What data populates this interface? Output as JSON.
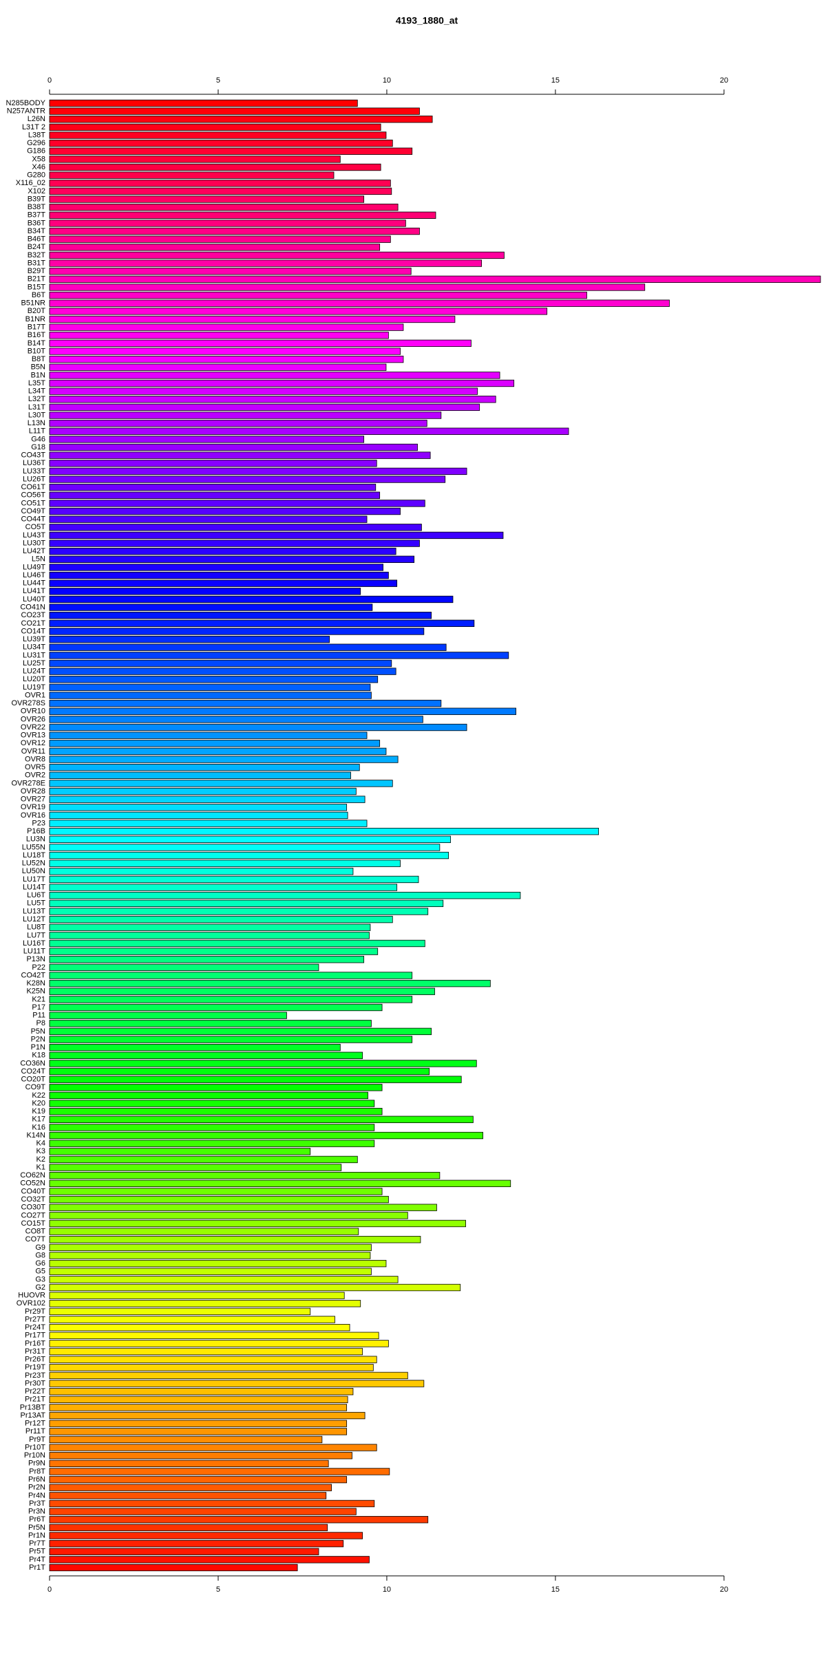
{
  "chart_data": {
    "type": "barh",
    "title": "4193_1880_at",
    "palette": "rainbow",
    "categories": [
      "N285BODY",
      "N257ANTR",
      "L26N",
      "L31T 2",
      "L38T",
      "G296",
      "G186",
      "X58",
      "X46",
      "G280",
      "X116_02",
      "X102",
      "B39T",
      "B38T",
      "B37T",
      "B36T",
      "B34T",
      "B46T",
      "B24T",
      "B32T",
      "B31T",
      "B29T",
      "B21T",
      "B15T",
      "B6T",
      "B51NR",
      "B20T",
      "B1NR",
      "B17T",
      "B16T",
      "B14T",
      "B10T",
      "B8T",
      "B5N",
      "B1N",
      "L35T",
      "L34T",
      "L32T",
      "L31T",
      "L30T",
      "L13N",
      "L11T",
      "G46",
      "G18",
      "CO43T",
      "LU36T",
      "LU33T",
      "LU26T",
      "CO61T",
      "CO56T",
      "CO51T",
      "CO49T",
      "CO44T",
      "CO5T",
      "LU43T",
      "LU30T",
      "LU42T",
      "L5N",
      "LU49T",
      "LU46T",
      "LU44T",
      "LU41T",
      "LU40T",
      "CO41N",
      "CO23T",
      "CO21T",
      "CO14T",
      "LU39T",
      "LU34T",
      "LU31T",
      "LU25T",
      "LU24T",
      "LU20T",
      "LU19T",
      "OVR1",
      "OVR278S",
      "OVR10",
      "OVR26",
      "OVR22",
      "OVR13",
      "OVR12",
      "OVR11",
      "OVR8",
      "OVR5",
      "OVR2",
      "OVR278E",
      "OVR28",
      "OVR27",
      "OVR19",
      "OVR16",
      "P23",
      "P16B",
      "LU3N",
      "LU55N",
      "LU18T",
      "LU52N",
      "LU50N",
      "LU17T",
      "LU14T",
      "LU6T",
      "LU5T",
      "LU13T",
      "LU12T",
      "LU8T",
      "LU7T",
      "LU16T",
      "LU11T",
      "P13N",
      "P22",
      "CO42T",
      "K28N",
      "K25N",
      "K21",
      "P17",
      "P11",
      "P8",
      "P5N",
      "P2N",
      "P1N",
      "K18",
      "CO36N",
      "CO24T",
      "CO20T",
      "CO9T",
      "K22",
      "K20",
      "K19",
      "K17",
      "K16",
      "K14N",
      "K4",
      "K3",
      "K2",
      "K1",
      "CO62N",
      "CO52N",
      "CO40T",
      "CO32T",
      "CO30T",
      "CO27T",
      "CO15T",
      "CO8T",
      "CO7T",
      "G9",
      "G8",
      "G6",
      "G5",
      "G3",
      "G2",
      "HUOVR",
      "OVR102",
      "Pr29T",
      "Pr27T",
      "Pr24T",
      "Pr17T",
      "Pr16T",
      "Pr31T",
      "Pr26T",
      "Pr19T",
      "Pr23T",
      "Pr30T",
      "Pr22T",
      "Pr21T",
      "Pr13BT",
      "Pr13AT",
      "Pr12T",
      "Pr11T",
      "Pr9T",
      "Pr10T",
      "Pr10N",
      "Pr9N",
      "Pr8T",
      "Pr6N",
      "Pr2N",
      "Pr4N",
      "Pr3T",
      "Pr3N",
      "Pr6T",
      "Pr5N",
      "Pr1N",
      "Pr7T",
      "Pr5T",
      "Pr4T",
      "Pr1T"
    ],
    "values": [
      9.13,
      10.97,
      11.35,
      9.82,
      9.98,
      10.17,
      10.75,
      8.62,
      9.82,
      8.43,
      10.11,
      10.14,
      9.32,
      10.33,
      11.45,
      10.56,
      10.97,
      10.11,
      9.79,
      13.48,
      12.81,
      10.72,
      22.86,
      17.65,
      15.93,
      18.38,
      14.75,
      12.02,
      10.49,
      10.05,
      12.5,
      10.4,
      10.49,
      9.98,
      13.35,
      13.77,
      12.69,
      13.23,
      12.75,
      11.61,
      11.19,
      15.39,
      9.32,
      10.91,
      11.29,
      9.7,
      12.37,
      11.73,
      9.67,
      9.79,
      11.13,
      10.4,
      9.41,
      11.03,
      13.45,
      10.97,
      10.27,
      10.81,
      9.89,
      10.05,
      10.3,
      9.22,
      11.96,
      9.57,
      11.32,
      12.59,
      11.1,
      8.3,
      11.76,
      13.61,
      10.14,
      10.27,
      9.73,
      9.51,
      9.54,
      11.61,
      13.83,
      11.07,
      12.37,
      9.41,
      9.79,
      9.98,
      10.33,
      9.19,
      8.93,
      10.17,
      9.09,
      9.35,
      8.81,
      8.84,
      9.41,
      16.28,
      11.89,
      11.57,
      11.83,
      10.4,
      9.0,
      10.94,
      10.3,
      13.96,
      11.67,
      11.22,
      10.17,
      9.51,
      9.48,
      11.13,
      9.73,
      9.32,
      7.98,
      10.75,
      13.07,
      11.42,
      10.75,
      9.86,
      7.03,
      9.54,
      11.32,
      10.75,
      8.62,
      9.28,
      12.66,
      11.26,
      12.21,
      9.86,
      9.44,
      9.63,
      9.86,
      12.56,
      9.63,
      12.85,
      9.63,
      7.73,
      9.13,
      8.65,
      11.57,
      13.67,
      9.86,
      10.05,
      11.48,
      10.62,
      12.34,
      9.16,
      11.0,
      9.54,
      9.51,
      9.98,
      9.54,
      10.33,
      12.18,
      8.74,
      9.22,
      7.73,
      8.46,
      8.9,
      9.76,
      10.05,
      9.28,
      9.7,
      9.6,
      10.62,
      11.1,
      9.0,
      8.84,
      8.81,
      9.35,
      8.81,
      8.81,
      8.08,
      9.7,
      8.97,
      8.27,
      10.08,
      8.81,
      8.36,
      8.2,
      9.63,
      9.09,
      11.22,
      8.24,
      9.28,
      8.71,
      7.98,
      9.48,
      7.35
    ],
    "xlim": [
      0,
      22.86
    ],
    "xticks": [
      0,
      5,
      10,
      15,
      20
    ]
  }
}
